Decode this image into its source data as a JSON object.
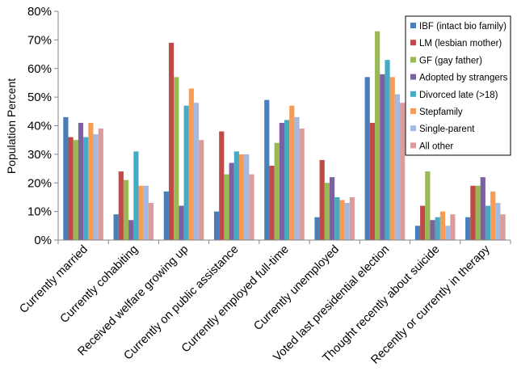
{
  "chart_data": {
    "type": "bar",
    "ylabel": "Population Percent",
    "ylim": [
      0,
      80
    ],
    "yticks": [
      "0%",
      "10%",
      "20%",
      "30%",
      "40%",
      "50%",
      "60%",
      "70%",
      "80%"
    ],
    "grid": false,
    "legend_position": "top-right",
    "categories": [
      "Currently married",
      "Currently cohabiting",
      "Received welfare growing up",
      "Currently on public assistance",
      "Currently employed full-time",
      "Currently unemployed",
      "Voted last presidential election",
      "Thought recently about suicide",
      "Recently or currently in therapy"
    ],
    "series": [
      {
        "name": "IBF (intact bio family)",
        "color": "#4a7ebb",
        "values": [
          43,
          9,
          17,
          10,
          49,
          8,
          57,
          5,
          8
        ]
      },
      {
        "name": "LM (lesbian mother)",
        "color": "#be4b48",
        "values": [
          36,
          24,
          69,
          38,
          26,
          28,
          41,
          12,
          19
        ]
      },
      {
        "name": "GF (gay father)",
        "color": "#98b954",
        "values": [
          35,
          21,
          57,
          23,
          34,
          20,
          73,
          24,
          19
        ]
      },
      {
        "name": "Adopted by strangers",
        "color": "#7d60a0",
        "values": [
          41,
          7,
          12,
          27,
          41,
          22,
          58,
          7,
          22
        ]
      },
      {
        "name": "Divorced late (>18)",
        "color": "#46aac5",
        "values": [
          36,
          31,
          47,
          31,
          42,
          15,
          63,
          8,
          12
        ]
      },
      {
        "name": "Stepfamily",
        "color": "#f59d56",
        "values": [
          41,
          19,
          53,
          30,
          47,
          14,
          57,
          10,
          17
        ]
      },
      {
        "name": "Single-parent",
        "color": "#a5b8e0",
        "values": [
          37,
          19,
          48,
          30,
          43,
          13,
          51,
          5,
          13
        ]
      },
      {
        "name": "All other",
        "color": "#dc9c9b",
        "values": [
          39,
          13,
          35,
          23,
          39,
          15,
          48,
          9,
          9
        ]
      }
    ]
  }
}
